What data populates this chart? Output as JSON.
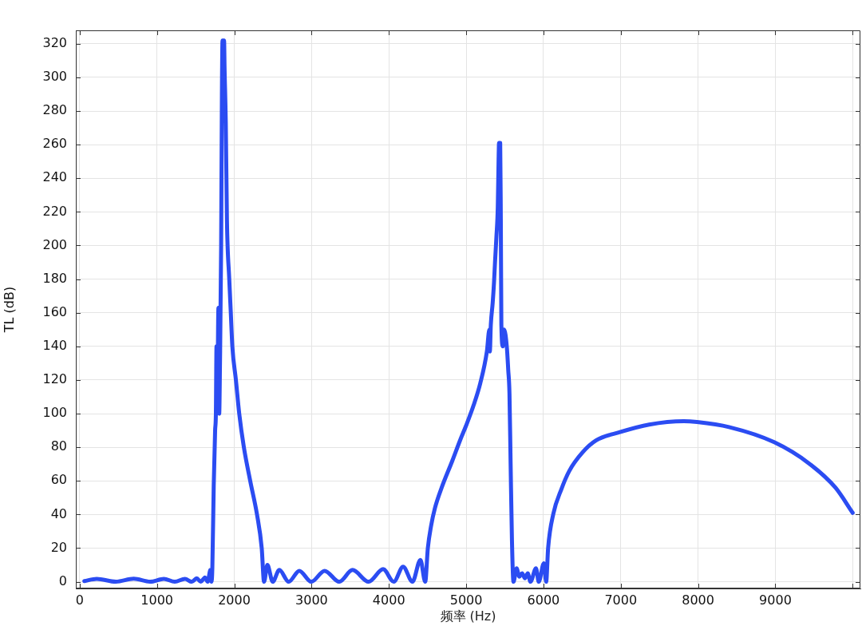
{
  "chart_data": {
    "type": "line",
    "xlabel": "频率 (Hz)",
    "ylabel": "TL (dB)",
    "x": [
      60,
      220,
      468,
      699,
      911,
      1089,
      1230,
      1362,
      1450,
      1514,
      1567,
      1620,
      1656,
      1691,
      1705,
      1716,
      1734,
      1752,
      1762,
      1770,
      1780,
      1795,
      1805,
      1815,
      1830,
      1840,
      1848,
      1868,
      1874,
      1890,
      1905,
      1935,
      1955,
      1975,
      2021,
      2064,
      2124,
      2206,
      2294,
      2355,
      2385,
      2428,
      2497,
      2583,
      2704,
      2841,
      2996,
      3169,
      3358,
      3530,
      3737,
      3926,
      4063,
      4184,
      4305,
      4408,
      4470,
      4504,
      4545,
      4597,
      4683,
      4821,
      4920,
      5000,
      5096,
      5182,
      5268,
      5300,
      5306,
      5319,
      5343,
      5360,
      5373,
      5391,
      5409,
      5419,
      5425,
      5440,
      5448,
      5455,
      5475,
      5491,
      5527,
      5544,
      5560,
      5575,
      5592,
      5612,
      5652,
      5688,
      5724,
      5760,
      5796,
      5832,
      5903,
      5939,
      6005,
      6035,
      6060,
      6128,
      6231,
      6335,
      6507,
      6679,
      6989,
      7367,
      7815,
      7987,
      8400,
      8985,
      9432,
      9777,
      10000
    ],
    "values": [
      0.4,
      1.7,
      0,
      1.8,
      0,
      1.7,
      0,
      1.7,
      0,
      2,
      0,
      2.5,
      0,
      7,
      0,
      8,
      57,
      90,
      100,
      140,
      105,
      163,
      100,
      130,
      200,
      290,
      322,
      322,
      306,
      273,
      215,
      180,
      160,
      140,
      120,
      100,
      80,
      60,
      40,
      20,
      0,
      10,
      0,
      7,
      0,
      6.5,
      0,
      6.5,
      0,
      7,
      0,
      7.5,
      0,
      9,
      0,
      13,
      0,
      20,
      33,
      44,
      56,
      72,
      84,
      93,
      105,
      118,
      137,
      150,
      137,
      153,
      166,
      178,
      190,
      205,
      223,
      250,
      261,
      261,
      216,
      153,
      140,
      150,
      139,
      126,
      112,
      70,
      25,
      0,
      8,
      3,
      5,
      2,
      5,
      0,
      8,
      0,
      11,
      0,
      20,
      40.5,
      55,
      66,
      77,
      84,
      89,
      93.5,
      95.5,
      95,
      92,
      83,
      70.5,
      56,
      41
    ],
    "color": "#2b4cf2",
    "line_style": "solid",
    "xlim": [
      -50,
      10100
    ],
    "xticks": [
      0,
      1000,
      2000,
      3000,
      4000,
      5000,
      6000,
      7000,
      8000,
      9000,
      {
        "value": 10000,
        "label": null
      }
    ],
    "ylim": [
      -4,
      328
    ],
    "yticks": [
      0,
      20,
      40,
      60,
      80,
      100,
      120,
      140,
      160,
      180,
      200,
      220,
      240,
      260,
      280,
      300,
      320
    ],
    "grid": true
  }
}
